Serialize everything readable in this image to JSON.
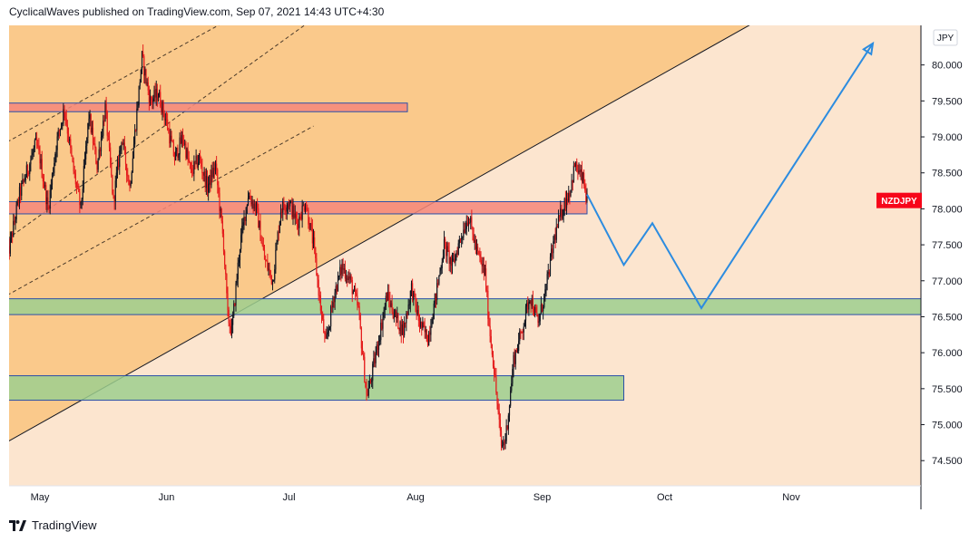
{
  "header": {
    "publisher_line": "CyclicalWaves published on TradingView.com, Sep 07, 2021 14:43 UTC+4:30"
  },
  "footer": {
    "brand": "TradingView"
  },
  "chart_data": {
    "type": "candlestick",
    "symbol": "NZDJPY",
    "currency": "JPY",
    "symbol_color": "#f7061a",
    "y_range": [
      74.15,
      80.55
    ],
    "y_ticks": [
      "80.000",
      "79.500",
      "79.000",
      "78.500",
      "78.000",
      "77.500",
      "77.000",
      "76.500",
      "76.000",
      "75.500",
      "75.000",
      "74.500"
    ],
    "x_ticks": [
      "May",
      "Jun",
      "Jul",
      "Aug",
      "Sep",
      "Oct",
      "Nov"
    ],
    "x_tick_days": [
      1,
      32,
      62,
      93,
      124,
      154,
      185
    ],
    "x_tick_note": "days counted from Apr 30, 2021 = 0",
    "last_price": 78.11,
    "price_path": [
      [
        -7,
        77.3
      ],
      [
        -4,
        78.2
      ],
      [
        0,
        78.9
      ],
      [
        1,
        78.7
      ],
      [
        3,
        78.0
      ],
      [
        5,
        78.9
      ],
      [
        7,
        79.4
      ],
      [
        9,
        78.6
      ],
      [
        11,
        78.0
      ],
      [
        13,
        79.3
      ],
      [
        15,
        78.6
      ],
      [
        17,
        79.4
      ],
      [
        19,
        78.1
      ],
      [
        21,
        79.0
      ],
      [
        23,
        78.3
      ],
      [
        25,
        79.5
      ],
      [
        26,
        80.1
      ],
      [
        28,
        79.5
      ],
      [
        30,
        79.6
      ],
      [
        32,
        79.2
      ],
      [
        34,
        78.7
      ],
      [
        36,
        79.0
      ],
      [
        38,
        78.5
      ],
      [
        40,
        78.7
      ],
      [
        42,
        78.3
      ],
      [
        44,
        78.6
      ],
      [
        46,
        77.5
      ],
      [
        47,
        76.5
      ],
      [
        48,
        76.3
      ],
      [
        50,
        77.5
      ],
      [
        52,
        78.2
      ],
      [
        54,
        78.0
      ],
      [
        56,
        77.3
      ],
      [
        58,
        77.0
      ],
      [
        60,
        78.0
      ],
      [
        62,
        78.1
      ],
      [
        64,
        77.8
      ],
      [
        66,
        78.1
      ],
      [
        68,
        77.5
      ],
      [
        70,
        76.5
      ],
      [
        71,
        76.1
      ],
      [
        73,
        76.8
      ],
      [
        75,
        77.2
      ],
      [
        77,
        77.0
      ],
      [
        79,
        76.6
      ],
      [
        81,
        75.4
      ],
      [
        82,
        75.6
      ],
      [
        84,
        76.2
      ],
      [
        86,
        76.8
      ],
      [
        88,
        76.5
      ],
      [
        90,
        76.3
      ],
      [
        92,
        76.9
      ],
      [
        94,
        76.4
      ],
      [
        96,
        76.2
      ],
      [
        98,
        76.8
      ],
      [
        100,
        77.5
      ],
      [
        102,
        77.2
      ],
      [
        104,
        77.6
      ],
      [
        106,
        77.9
      ],
      [
        108,
        77.4
      ],
      [
        110,
        77.1
      ],
      [
        111,
        76.4
      ],
      [
        112,
        75.9
      ],
      [
        113,
        75.3
      ],
      [
        114,
        74.7
      ],
      [
        115,
        74.8
      ],
      [
        116,
        75.3
      ],
      [
        117,
        75.9
      ],
      [
        119,
        76.3
      ],
      [
        121,
        76.8
      ],
      [
        123,
        76.4
      ],
      [
        125,
        76.9
      ],
      [
        127,
        77.6
      ],
      [
        129,
        78.0
      ],
      [
        131,
        78.3
      ],
      [
        132,
        78.6
      ],
      [
        133,
        78.5
      ],
      [
        134,
        78.4
      ],
      [
        135,
        78.11
      ]
    ],
    "zones": [
      {
        "kind": "resistance",
        "from_day": -7,
        "to_day": 91,
        "low": 79.35,
        "high": 79.47,
        "color": "#f4877a"
      },
      {
        "kind": "resistance",
        "from_day": -7,
        "to_day": 135,
        "low": 77.93,
        "high": 78.1,
        "color": "#f4877a"
      },
      {
        "kind": "support",
        "from_day": -7,
        "to_day": 222,
        "low": 76.53,
        "high": 76.75,
        "color": "#9dcf8e"
      },
      {
        "kind": "support",
        "from_day": -7,
        "to_day": 144,
        "low": 75.34,
        "high": 75.68,
        "color": "#9dcf8e"
      }
    ],
    "trendline": {
      "points": [
        [
          -7,
          74.76
        ],
        [
          175,
          80.56
        ]
      ],
      "color": "#131722"
    },
    "channel_lines": [
      {
        "points": [
          [
            -7,
            78.93
          ],
          [
            45,
            80.56
          ]
        ]
      },
      {
        "points": [
          [
            -7,
            77.58
          ],
          [
            66,
            80.56
          ]
        ]
      },
      {
        "points": [
          [
            -7,
            76.8
          ],
          [
            68,
            79.15
          ]
        ]
      }
    ],
    "projection": {
      "color": "#2c8ce0",
      "points": [
        [
          135,
          78.2
        ],
        [
          144,
          77.22
        ],
        [
          151,
          77.8
        ],
        [
          163,
          76.62
        ],
        [
          205,
          80.3
        ]
      ]
    }
  }
}
